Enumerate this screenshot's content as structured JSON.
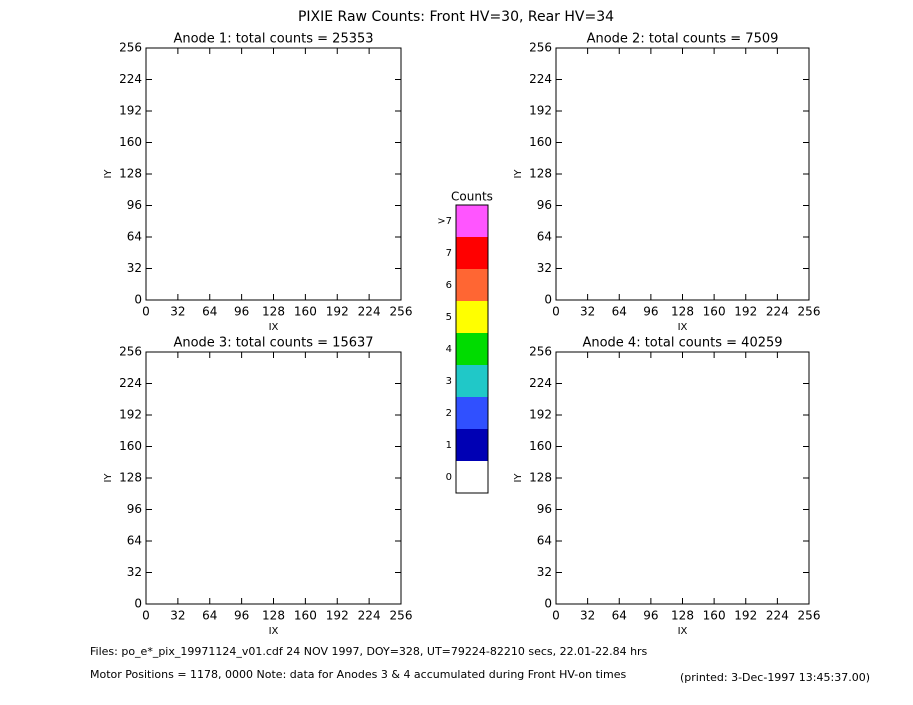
{
  "title": "PIXIE Raw Counts:  Front HV=30, Rear HV=34",
  "chart_data": [
    {
      "type": "heatmap",
      "title": "Anode 1: total counts = 25353",
      "x_label": "IX",
      "y_label": "IY",
      "xlim": [
        0,
        256
      ],
      "ylim": [
        0,
        256
      ],
      "xticks": [
        0,
        32,
        64,
        96,
        128,
        160,
        192,
        224,
        256
      ],
      "yticks": [
        0,
        32,
        64,
        96,
        128,
        160,
        192,
        224,
        256
      ]
    },
    {
      "type": "heatmap",
      "title": "Anode 2: total counts = 7509",
      "x_label": "IX",
      "y_label": "IY",
      "xlim": [
        0,
        256
      ],
      "ylim": [
        0,
        256
      ],
      "xticks": [
        0,
        32,
        64,
        96,
        128,
        160,
        192,
        224,
        256
      ],
      "yticks": [
        0,
        32,
        64,
        96,
        128,
        160,
        192,
        224,
        256
      ]
    },
    {
      "type": "heatmap",
      "title": "Anode 3: total counts = 15637",
      "x_label": "IX",
      "y_label": "IY",
      "xlim": [
        0,
        256
      ],
      "ylim": [
        0,
        256
      ],
      "xticks": [
        0,
        32,
        64,
        96,
        128,
        160,
        192,
        224,
        256
      ],
      "yticks": [
        0,
        32,
        64,
        96,
        128,
        160,
        192,
        224,
        256
      ]
    },
    {
      "type": "heatmap",
      "title": "Anode 4: total counts = 40259",
      "x_label": "IX",
      "y_label": "IY",
      "xlim": [
        0,
        256
      ],
      "ylim": [
        0,
        256
      ],
      "xticks": [
        0,
        32,
        64,
        96,
        128,
        160,
        192,
        224,
        256
      ],
      "yticks": [
        0,
        32,
        64,
        96,
        128,
        160,
        192,
        224,
        256
      ]
    }
  ],
  "colorbar": {
    "title": "Counts",
    "labels": [
      "0",
      "1",
      "2",
      "3",
      "4",
      "5",
      "6",
      "7",
      ">7"
    ],
    "colors": [
      "#ffffff",
      "#0000b4",
      "#3050ff",
      "#20c8c8",
      "#00dc00",
      "#ffff00",
      "#ff6633",
      "#ff0000",
      "#ff55ff"
    ]
  },
  "footer": {
    "files": "Files: po_e*_pix_19971124_v01.cdf    24 NOV 1997, DOY=328, UT=79224-82210 secs, 22.01-22.84 hrs",
    "motor": "Motor Positions = 1178, 0000   Note: data for Anodes 3 & 4 accumulated during Front HV-on times",
    "printed": "(printed:  3-Dec-1997 13:45:37.00)"
  }
}
